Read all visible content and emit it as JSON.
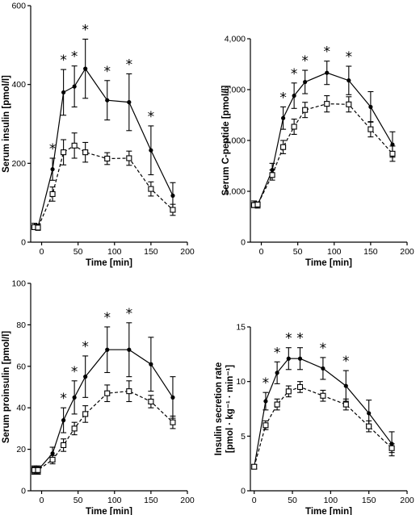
{
  "chart_data": [
    {
      "type": "line",
      "xlabel": "Time [min]",
      "ylabel": "Serum insulin [pmol/l]",
      "xlim": [
        -15,
        200
      ],
      "ylim": [
        0,
        600
      ],
      "xticks": [
        0,
        50,
        100,
        150,
        200
      ],
      "yticks": [
        0,
        200,
        400,
        600
      ],
      "ytick_labels": [
        "0",
        "200",
        "400",
        "600"
      ],
      "series": [
        {
          "marker": "filled-circle",
          "line": "solid",
          "x": [
            -10,
            -5,
            15,
            30,
            45,
            60,
            90,
            120,
            150,
            180
          ],
          "y": [
            40,
            38,
            185,
            380,
            395,
            440,
            360,
            355,
            233,
            118
          ],
          "err": [
            8,
            8,
            28,
            58,
            52,
            75,
            50,
            72,
            62,
            33
          ]
        },
        {
          "marker": "open-square",
          "line": "dashed",
          "x": [
            -10,
            -5,
            15,
            30,
            45,
            60,
            90,
            120,
            150,
            180
          ],
          "y": [
            38,
            37,
            122,
            228,
            245,
            228,
            212,
            213,
            135,
            82
          ],
          "err": [
            5,
            5,
            18,
            32,
            32,
            25,
            15,
            18,
            18,
            14
          ]
        }
      ],
      "significance_markers": [
        {
          "x": 15,
          "label": "*"
        },
        {
          "x": 30,
          "label": "*"
        },
        {
          "x": 45,
          "label": "*"
        },
        {
          "x": 60,
          "label": "*"
        },
        {
          "x": 90,
          "label": "*"
        },
        {
          "x": 120,
          "label": "*"
        },
        {
          "x": 150,
          "label": "*"
        }
      ]
    },
    {
      "type": "line",
      "xlabel": "Time [min]",
      "ylabel": "Serum C-peptide [pmol/l]",
      "xlim": [
        -15,
        200
      ],
      "ylim": [
        0,
        4000
      ],
      "xticks": [
        0,
        50,
        100,
        150,
        200
      ],
      "yticks": [
        0,
        1000,
        2000,
        3000,
        4000
      ],
      "ytick_labels": [
        "0",
        "1,000",
        "2,000",
        "3,000",
        "4,000"
      ],
      "series": [
        {
          "marker": "filled-circle",
          "line": "solid",
          "x": [
            -10,
            -5,
            15,
            30,
            45,
            60,
            90,
            120,
            150,
            180
          ],
          "y": [
            750,
            730,
            1420,
            2440,
            2880,
            3150,
            3330,
            3180,
            2660,
            1920
          ],
          "err": [
            60,
            60,
            130,
            220,
            250,
            230,
            230,
            280,
            300,
            250
          ]
        },
        {
          "marker": "open-square",
          "line": "dashed",
          "x": [
            -10,
            -5,
            15,
            30,
            45,
            60,
            90,
            120,
            150,
            180
          ],
          "y": [
            730,
            740,
            1320,
            1870,
            2270,
            2600,
            2720,
            2710,
            2220,
            1740
          ],
          "err": [
            50,
            50,
            100,
            130,
            150,
            150,
            160,
            150,
            150,
            150
          ]
        }
      ],
      "significance_markers": [
        {
          "x": 30,
          "label": "*"
        },
        {
          "x": 45,
          "label": "*"
        },
        {
          "x": 60,
          "label": "*"
        },
        {
          "x": 90,
          "label": "*"
        },
        {
          "x": 120,
          "label": "*"
        }
      ]
    },
    {
      "type": "line",
      "xlabel": "Time [min]",
      "ylabel": "Serum proinsulin [pmol/l]",
      "xlim": [
        -15,
        200
      ],
      "ylim": [
        0,
        100
      ],
      "xticks": [
        0,
        50,
        100,
        150,
        200
      ],
      "yticks": [
        0,
        20,
        40,
        60,
        80,
        100
      ],
      "ytick_labels": [
        "0",
        "20",
        "40",
        "60",
        "80",
        "100"
      ],
      "series": [
        {
          "marker": "filled-circle",
          "line": "solid",
          "x": [
            -10,
            -5,
            15,
            30,
            45,
            60,
            90,
            120,
            150,
            180
          ],
          "y": [
            10,
            10,
            18,
            34,
            45,
            55,
            68,
            68,
            61,
            45
          ],
          "err": [
            2,
            2,
            3,
            6,
            8,
            10,
            11,
            13,
            13,
            10
          ]
        },
        {
          "marker": "open-square",
          "line": "dashed",
          "x": [
            -10,
            -5,
            15,
            30,
            45,
            60,
            90,
            120,
            150,
            180
          ],
          "y": [
            10,
            10,
            15,
            22,
            30,
            37,
            47,
            48,
            43,
            33
          ],
          "err": [
            1.5,
            1.5,
            2,
            3,
            3,
            4,
            4,
            5,
            3,
            3
          ]
        }
      ],
      "significance_markers": [
        {
          "x": 30,
          "label": "*"
        },
        {
          "x": 45,
          "label": "*"
        },
        {
          "x": 60,
          "label": "*"
        },
        {
          "x": 90,
          "label": "*"
        },
        {
          "x": 120,
          "label": "*"
        }
      ]
    },
    {
      "type": "line",
      "xlabel": "Time [min]",
      "ylabel": "Insulin secretion rate [pmol · kg⁻¹ · min⁻¹]",
      "ylabel_lines": [
        "Insulin secretion rate",
        "[pmol · kg⁻¹ · min⁻¹]"
      ],
      "xlim": [
        -5,
        200
      ],
      "ylim": [
        0,
        15
      ],
      "xticks": [
        0,
        50,
        100,
        150,
        200
      ],
      "yticks": [
        0,
        5,
        10,
        15
      ],
      "ytick_labels": [
        "0",
        "5",
        "10",
        "15"
      ],
      "series": [
        {
          "marker": "filled-circle",
          "line": "solid",
          "x": [
            0,
            15,
            30,
            45,
            60,
            90,
            120,
            150,
            180
          ],
          "y": [
            2.2,
            8.2,
            10.8,
            12.1,
            12.1,
            11.2,
            9.6,
            7.1,
            4.3
          ],
          "err": [
            0.2,
            0.8,
            1.0,
            1.0,
            1.0,
            1.0,
            1.4,
            1.2,
            1.1
          ]
        },
        {
          "marker": "open-square",
          "line": "dashed",
          "x": [
            0,
            15,
            30,
            45,
            60,
            90,
            120,
            150,
            180
          ],
          "y": [
            2.2,
            6.0,
            7.9,
            9.1,
            9.5,
            8.7,
            7.9,
            5.9,
            3.9
          ],
          "err": [
            0.2,
            0.4,
            0.5,
            0.5,
            0.5,
            0.5,
            0.5,
            0.5,
            0.4
          ]
        }
      ],
      "significance_markers": [
        {
          "x": 15,
          "label": "*"
        },
        {
          "x": 30,
          "label": "*"
        },
        {
          "x": 45,
          "label": "*"
        },
        {
          "x": 60,
          "label": "*"
        },
        {
          "x": 90,
          "label": "*"
        },
        {
          "x": 120,
          "label": "*"
        }
      ]
    }
  ]
}
